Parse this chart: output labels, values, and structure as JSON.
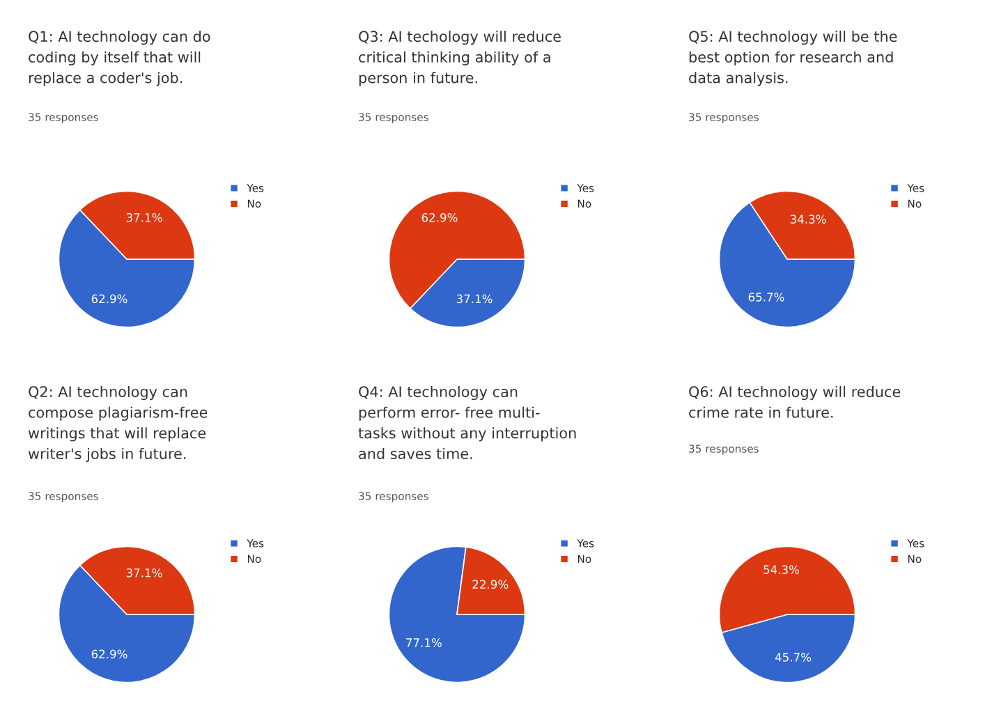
{
  "chart_data": [
    {
      "type": "pie",
      "title": "Q1: AI technology can do\ncoding by itself that will\nreplace a coder's job.",
      "subtitle": "35 responses",
      "categories": [
        "Yes",
        "No"
      ],
      "values": [
        62.9,
        37.1
      ],
      "colors": [
        "#3366cc",
        "#dc3912"
      ],
      "value_labels": [
        "62.9%",
        "37.1%"
      ],
      "legend": "top right"
    },
    {
      "type": "pie",
      "title": "Q3: AI techology will reduce\ncritical thinking ability of a\nperson in future.",
      "subtitle": "35 responses",
      "categories": [
        "Yes",
        "No"
      ],
      "values": [
        37.1,
        62.9
      ],
      "colors": [
        "#3366cc",
        "#dc3912"
      ],
      "value_labels": [
        "37.1%",
        "62.9%"
      ],
      "legend": "top right"
    },
    {
      "type": "pie",
      "title": "Q5: AI technology will be the\nbest option for research and\ndata analysis.",
      "subtitle": "35 responses",
      "categories": [
        "Yes",
        "No"
      ],
      "values": [
        65.7,
        34.3
      ],
      "colors": [
        "#3366cc",
        "#dc3912"
      ],
      "value_labels": [
        "65.7%",
        "34.3%"
      ],
      "legend": "top right"
    },
    {
      "type": "pie",
      "title": "Q2: AI technology can\ncompose plagiarism-free\nwritings that will replace\nwriter's jobs in future.",
      "subtitle": "35 responses",
      "categories": [
        "Yes",
        "No"
      ],
      "values": [
        62.9,
        37.1
      ],
      "colors": [
        "#3366cc",
        "#dc3912"
      ],
      "value_labels": [
        "62.9%",
        "37.1%"
      ],
      "legend": "top right"
    },
    {
      "type": "pie",
      "title": "Q4: AI technology can\nperform error- free multi-\ntasks without any interruption\nand saves time.",
      "subtitle": "35 responses",
      "categories": [
        "Yes",
        "No"
      ],
      "values": [
        77.1,
        22.9
      ],
      "colors": [
        "#3366cc",
        "#dc3912"
      ],
      "value_labels": [
        "77.1%",
        "22.9%"
      ],
      "legend": "top right"
    },
    {
      "type": "pie",
      "title": "Q6: AI technology will reduce\ncrime rate in future.",
      "subtitle": "35 responses",
      "categories": [
        "Yes",
        "No"
      ],
      "values": [
        45.7,
        54.3
      ],
      "colors": [
        "#3366cc",
        "#dc3912"
      ],
      "value_labels": [
        "45.7%",
        "54.3%"
      ],
      "legend": "top right"
    }
  ]
}
